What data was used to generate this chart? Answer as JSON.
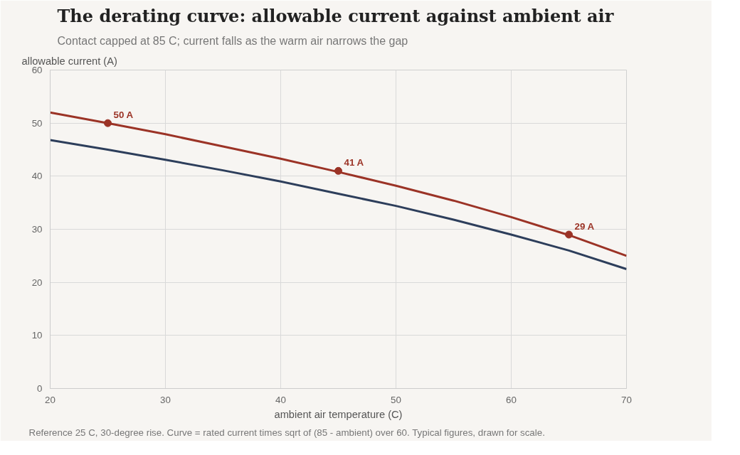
{
  "chart_data": {
    "type": "line",
    "title": "The derating curve: allowable current against ambient air",
    "subtitle": "Contact capped at 85 C; current falls as the warm air narrows the gap",
    "xlabel": "ambient air temperature (C)",
    "ylabel": "allowable current (A)",
    "x": [
      20,
      25,
      30,
      35,
      40,
      45,
      50,
      55,
      60,
      65,
      70
    ],
    "series": [
      {
        "color": "#9b3326",
        "values": [
          52.0,
          50.0,
          47.9,
          45.6,
          43.3,
          40.8,
          38.2,
          35.4,
          32.3,
          28.9,
          25.0
        ]
      },
      {
        "color": "#2d3e5b",
        "values": [
          46.8,
          45.0,
          43.1,
          41.1,
          39.0,
          36.7,
          34.4,
          31.8,
          29.0,
          26.0,
          22.5
        ]
      },
      {
        "type": "scatter",
        "marker": "circle",
        "color": "#9b3326",
        "x": [
          25,
          45,
          65
        ],
        "values": [
          50,
          41,
          29
        ],
        "value_labels": [
          "50 A",
          "41 A",
          "29 A"
        ]
      }
    ],
    "xlim": [
      20,
      70
    ],
    "xticks": [
      20,
      30,
      40,
      50,
      60,
      70
    ],
    "ylim": [
      0,
      60
    ],
    "yticks": [
      0,
      10,
      20,
      30,
      40,
      50,
      60
    ],
    "grid": true,
    "line_style": "solid",
    "annotations": [
      "Reference 25 C, 30-degree rise. Curve = rated current times sqrt of (85 - ambient) over 60. Typical figures, drawn for scale."
    ]
  }
}
